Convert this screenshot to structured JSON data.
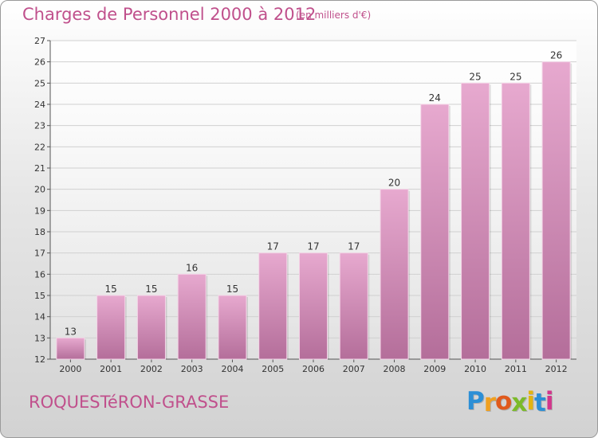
{
  "header": {
    "title": "Charges de Personnel 2000 à 2012",
    "subtitle": "(en milliers d'€)"
  },
  "footer": {
    "commune": "ROQUESTéRON-GRASSE",
    "brand": "Proxiti",
    "brand_letters": [
      "P",
      "r",
      "o",
      "x",
      "i",
      "t",
      "i"
    ],
    "brand_colors": [
      "#2c8fd6",
      "#f0a020",
      "#e05a1c",
      "#7cba2a",
      "#e2b411",
      "#2c8fd6",
      "#d2368c"
    ]
  },
  "colors": {
    "text_accent": "#c0508c",
    "bar_top": "#e7a9cf",
    "bar_bottom": "#b46e9a"
  },
  "chart_data": {
    "type": "bar",
    "title": "Charges de Personnel 2000 à 2012",
    "subtitle": "(en milliers d'€)",
    "categories": [
      "2000",
      "2001",
      "2002",
      "2003",
      "2004",
      "2005",
      "2006",
      "2007",
      "2008",
      "2009",
      "2010",
      "2011",
      "2012"
    ],
    "values": [
      13,
      15,
      15,
      16,
      15,
      17,
      17,
      17,
      20,
      24,
      25,
      25,
      26
    ],
    "yticks": [
      "12",
      "13",
      "14",
      "15",
      "16",
      "17",
      "18",
      "19",
      "20",
      "21",
      "22",
      "23",
      "24",
      "25",
      "26",
      "27"
    ],
    "ylim": [
      12,
      27
    ],
    "grid": true,
    "legend": "none"
  }
}
